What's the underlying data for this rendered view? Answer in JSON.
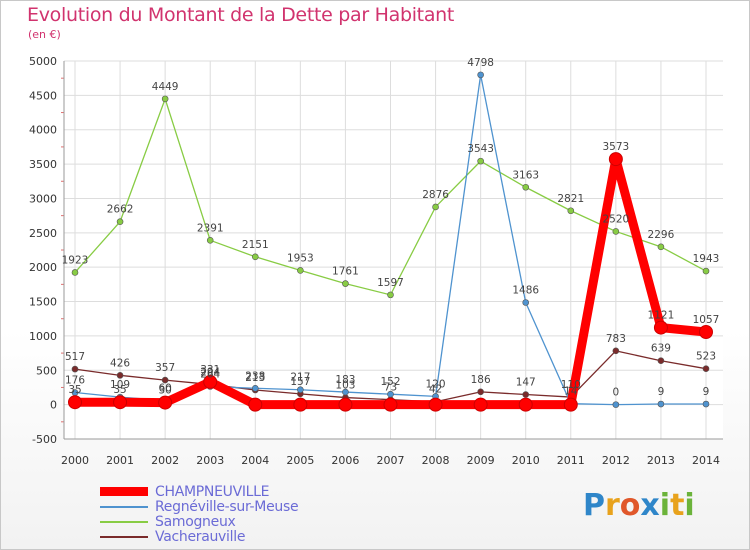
{
  "header": {
    "title": "Evolution du Montant de la Dette par Habitant",
    "subtitle": "(en €)"
  },
  "logo": {
    "text": "Proxiti",
    "letters": [
      "P",
      "r",
      "o",
      "x",
      "i",
      "t",
      "i"
    ]
  },
  "colors": {
    "title": "#d1336e",
    "legend_text": "#6b6bd6"
  },
  "chart_data": {
    "type": "line",
    "title": "Evolution du Montant de la Dette par Habitant",
    "ylabel": "(en €)",
    "xlabel": "",
    "x": [
      "2000",
      "2001",
      "2002",
      "2003",
      "2004",
      "2005",
      "2006",
      "2007",
      "2008",
      "2009",
      "2010",
      "2011",
      "2012",
      "2013",
      "2014"
    ],
    "ylim": [
      -500,
      5000
    ],
    "yticks": [
      -500,
      0,
      500,
      1000,
      1500,
      2000,
      2500,
      3000,
      3500,
      4000,
      4500,
      5000
    ],
    "grid": true,
    "legend_position": "bottom-left",
    "series": [
      {
        "name": "CHAMPNEUVILLE",
        "color": "#ff0000",
        "values": [
          35,
          35,
          30,
          331,
          0,
          0,
          0,
          0,
          0,
          0,
          0,
          0,
          3573,
          1121,
          1057
        ],
        "labels": [
          "35",
          "35",
          "30",
          "331",
          "",
          "",
          "",
          "",
          "",
          "",
          "",
          "",
          "3573",
          "1121",
          "1057"
        ]
      },
      {
        "name": "Regnéville-sur-Meuse",
        "color": "#4f93cf",
        "values": [
          176,
          109,
          60,
          264,
          238,
          217,
          183,
          152,
          120,
          4798,
          1486,
          14,
          0,
          9,
          9
        ],
        "labels": [
          "176",
          "109",
          "60",
          "264",
          "238",
          "217",
          "183",
          "152",
          "120",
          "4798",
          "1486",
          "14",
          "0",
          "9",
          "9"
        ]
      },
      {
        "name": "Samogneux",
        "color": "#88cc44",
        "values": [
          1923,
          2662,
          4449,
          2391,
          2151,
          1953,
          1761,
          1597,
          2876,
          3543,
          3163,
          2821,
          2520,
          2296,
          1943
        ],
        "labels": [
          "1923",
          "2662",
          "4449",
          "2391",
          "2151",
          "1953",
          "1761",
          "1597",
          "2876",
          "3543",
          "3163",
          "2821",
          "2520",
          "2296",
          "1943"
        ]
      },
      {
        "name": "Vacherauville",
        "color": "#7a2b2b",
        "values": [
          517,
          426,
          357,
          294,
          213,
          157,
          103,
          73,
          42,
          186,
          147,
          110,
          783,
          639,
          523
        ],
        "labels": [
          "517",
          "426",
          "357",
          "294",
          "213",
          "157",
          "103",
          "73",
          "42",
          "186",
          "147",
          "110",
          "783",
          "639",
          "523"
        ]
      }
    ]
  }
}
